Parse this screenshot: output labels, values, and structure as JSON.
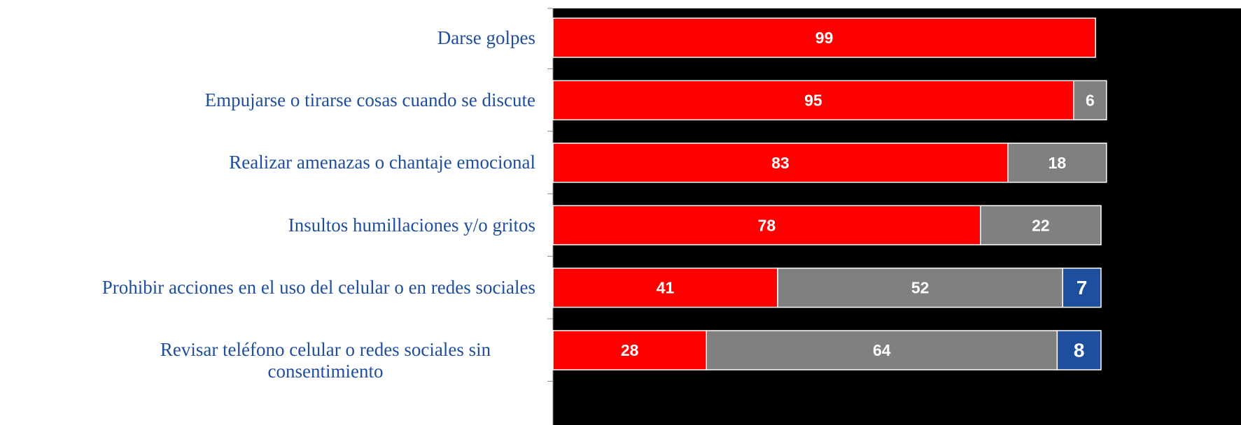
{
  "chart_data": {
    "type": "stacked-bar-horizontal",
    "categories": [
      "Darse golpes",
      "Empujarse o tirarse cosas cuando se discute",
      "Realizar amenazas o chantaje emocional",
      "Insultos humillaciones y/o gritos",
      "Prohibir acciones en el uso del celular o en redes sociales",
      "Revisar teléfono celular o redes sociales sin consentimiento"
    ],
    "series": [
      {
        "color": "#ff0000",
        "values": [
          99,
          95,
          83,
          78,
          41,
          28
        ]
      },
      {
        "color": "#808080",
        "values": [
          null,
          6,
          18,
          22,
          52,
          64
        ]
      },
      {
        "color": "#1f4e9c",
        "values": [
          null,
          null,
          null,
          null,
          7,
          8
        ]
      }
    ],
    "xlim": [
      0,
      100
    ],
    "background": "#000000"
  }
}
